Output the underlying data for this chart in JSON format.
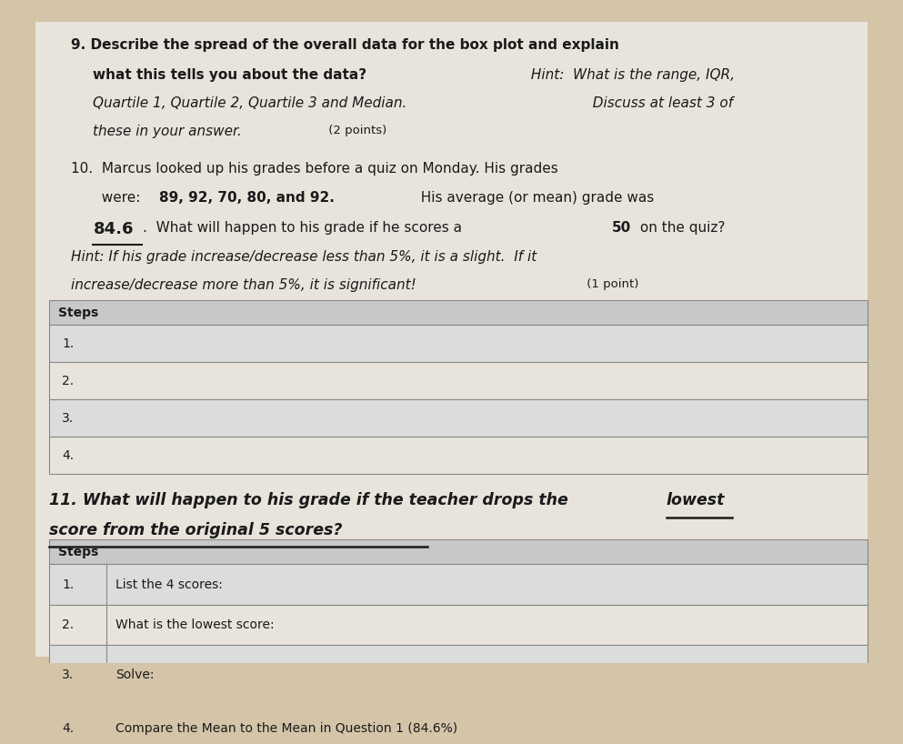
{
  "background_color": "#d4c5a9",
  "paper_color": "#e8e4dc",
  "q9_line1": "9. Describe the spread of the overall data for the box plot and explain",
  "q9_line2_bold": "what this tells you about the data?",
  "q9_hint_label": " Hint: ",
  "q9_hint_text": "What is the range, IQR,",
  "q9_line3": "Quartile 1, Quartile 2, Quartile 3 and Median.",
  "q9_line3b": "  Discuss at least 3 of",
  "q9_line4": "these in your answer.",
  "q9_points": " (2 points)",
  "q10_line1": "10.  Marcus looked up his grades before a quiz on Monday. His grades",
  "q10_line2_pre": "  were: ",
  "q10_line2_bold": "89, 92, 70, 80, and 92.",
  "q10_line2_post": "  His average (or mean) grade was",
  "q10_line3_bold": "84.6",
  "q10_line3_post": ".  What will happen to his grade if he scores a ",
  "q10_line3_bold2": "50",
  "q10_line3_post2": " on the quiz?",
  "q10_hint1": "Hint: If his grade increase/decrease less than 5%, it is a slight.  If it",
  "q10_hint2": "increase/decrease more than 5%, it is significant!",
  "q10_points": " (1 point)",
  "table1_header": "Steps",
  "table1_rows": [
    "1.",
    "2.",
    "3.",
    "4."
  ],
  "q11_line1_pre": "11. What will happen to his grade if the teacher drops the ",
  "q11_line1_ul": "lowest",
  "q11_line2_ul": "score from the original 5 scores?",
  "table2_header": "Steps",
  "table2_rows": [
    [
      "1.",
      "List the 4 scores:"
    ],
    [
      "2.",
      "What is the lowest score:"
    ],
    [
      "3.",
      "Solve:"
    ],
    [
      "4.",
      "Compare the Mean to the Mean in Question 1 (84.6%)"
    ]
  ],
  "header_color": "#c8c8c8",
  "row_color_even": "#dcdcdc",
  "row_color_odd": "#e8e4dc",
  "border_color": "#888888",
  "text_color": "#1a1a1a"
}
